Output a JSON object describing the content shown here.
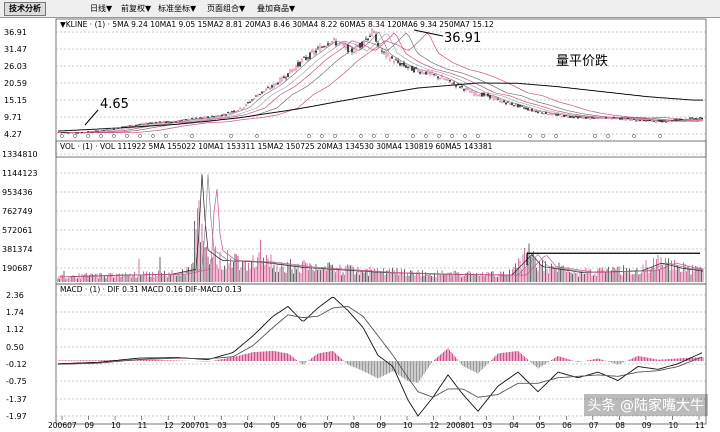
{
  "toolbar": {
    "title": "技术分析",
    "items": [
      "日线▼",
      "前复权▼",
      "标准坐标▼",
      "页面组合▼",
      "叠加商品▼"
    ]
  },
  "colors": {
    "bg": "#ffffff",
    "grid": "#9a9a9a",
    "pink": "#d0508c",
    "gray": "#9a9a9a",
    "dark": "#333333"
  },
  "chart_data": [
    {
      "type": "line",
      "name": "kline",
      "header": "▼KLINE · (1) · 5MA 9.24  10MA1 9.05  15MA2 8.81  20MA3 8.46  30MA4 8.22  60MA5 8.34  120MA6 9.34  250MA7 15.12",
      "y_ticks": [
        "36.91",
        "31.47",
        "26.03",
        "20.59",
        "15.15",
        "9.71",
        "4.27"
      ],
      "ylim": [
        4.27,
        36.91
      ],
      "annotations": {
        "low": "4.65",
        "high": "36.91",
        "note": "量平价跌"
      },
      "price_path": [
        [
          0,
          4.8
        ],
        [
          20,
          4.65
        ],
        [
          45,
          5.4
        ],
        [
          70,
          6.8
        ],
        [
          95,
          7.9
        ],
        [
          115,
          8.2
        ],
        [
          130,
          8.9
        ],
        [
          150,
          9.6
        ],
        [
          165,
          10.4
        ],
        [
          185,
          12.6
        ],
        [
          200,
          16.8
        ],
        [
          215,
          19.5
        ],
        [
          230,
          23.4
        ],
        [
          245,
          27.8
        ],
        [
          260,
          31.2
        ],
        [
          272,
          34.1
        ],
        [
          283,
          33.0
        ],
        [
          295,
          30.8
        ],
        [
          305,
          33.6
        ],
        [
          315,
          36.91
        ],
        [
          325,
          30.2
        ],
        [
          340,
          27.1
        ],
        [
          355,
          25.0
        ],
        [
          370,
          23.8
        ],
        [
          385,
          22.0
        ],
        [
          400,
          19.8
        ],
        [
          415,
          17.4
        ],
        [
          430,
          16.5
        ],
        [
          445,
          14.6
        ],
        [
          460,
          13.3
        ],
        [
          475,
          11.8
        ],
        [
          490,
          10.8
        ],
        [
          505,
          10.1
        ],
        [
          520,
          9.6
        ],
        [
          535,
          9.24
        ],
        [
          545,
          9.6
        ],
        [
          560,
          9.3
        ],
        [
          575,
          8.8
        ],
        [
          590,
          8.5
        ],
        [
          605,
          8.3
        ],
        [
          620,
          8.9
        ],
        [
          635,
          9.24
        ]
      ],
      "ma250_path": [
        [
          0,
          5.2
        ],
        [
          60,
          6.2
        ],
        [
          120,
          7.4
        ],
        [
          180,
          9.4
        ],
        [
          240,
          12.3
        ],
        [
          300,
          15.8
        ],
        [
          360,
          19.0
        ],
        [
          420,
          20.6
        ],
        [
          460,
          20.5
        ],
        [
          500,
          19.4
        ],
        [
          545,
          17.8
        ],
        [
          590,
          16.2
        ],
        [
          635,
          15.12
        ]
      ]
    },
    {
      "type": "bar",
      "name": "volume",
      "header": "VOL · (1) · VOL 111922  5MA 155022  10MA1 153311  15MA2 150725  20MA3 134530  30MA4 130819  60MA5 143381",
      "y_ticks": [
        "1334810",
        "1144123",
        "953436",
        "762749",
        "572061",
        "381374",
        "190687"
      ],
      "ylim": [
        0,
        1334810
      ],
      "ref_level": 300000,
      "profile": [
        [
          0,
          60000
        ],
        [
          60,
          80000
        ],
        [
          110,
          90000
        ],
        [
          135,
          150000
        ],
        [
          140,
          1250000
        ],
        [
          145,
          380000
        ],
        [
          160,
          250000
        ],
        [
          200,
          230000
        ],
        [
          240,
          170000
        ],
        [
          280,
          140000
        ],
        [
          320,
          110000
        ],
        [
          380,
          90000
        ],
        [
          450,
          80000
        ],
        [
          470,
          320000
        ],
        [
          480,
          180000
        ],
        [
          520,
          110000
        ],
        [
          580,
          130000
        ],
        [
          600,
          220000
        ],
        [
          620,
          160000
        ],
        [
          645,
          120000
        ]
      ]
    },
    {
      "type": "line",
      "name": "macd",
      "header": "MACD · (1) · DIF 0.31  MACD 0.16  DIF-MACD 0.13",
      "y_ticks": [
        "2.36",
        "1.74",
        "1.12",
        "0.50",
        "-0.12",
        "-0.75",
        "-1.37",
        "-1.97"
      ],
      "ylim": [
        -1.97,
        2.36
      ],
      "dif_path": [
        [
          0,
          -0.1
        ],
        [
          40,
          -0.05
        ],
        [
          80,
          0.1
        ],
        [
          120,
          0.12
        ],
        [
          150,
          0.05
        ],
        [
          175,
          0.3
        ],
        [
          195,
          0.9
        ],
        [
          215,
          1.6
        ],
        [
          230,
          1.95
        ],
        [
          245,
          1.4
        ],
        [
          260,
          1.9
        ],
        [
          275,
          2.3
        ],
        [
          290,
          1.8
        ],
        [
          305,
          1.2
        ],
        [
          320,
          0.2
        ],
        [
          335,
          -0.2
        ],
        [
          350,
          -1.4
        ],
        [
          360,
          -1.97
        ],
        [
          375,
          -1.3
        ],
        [
          390,
          -0.5
        ],
        [
          405,
          -1.2
        ],
        [
          420,
          -1.8
        ],
        [
          440,
          -0.9
        ],
        [
          460,
          -0.4
        ],
        [
          480,
          -1.1
        ],
        [
          500,
          -0.4
        ],
        [
          520,
          -0.6
        ],
        [
          540,
          -0.4
        ],
        [
          560,
          -0.7
        ],
        [
          580,
          -0.2
        ],
        [
          600,
          -0.3
        ],
        [
          620,
          -0.1
        ],
        [
          645,
          0.31
        ]
      ],
      "macd_path": [
        [
          0,
          -0.12
        ],
        [
          40,
          -0.08
        ],
        [
          80,
          0.05
        ],
        [
          120,
          0.1
        ],
        [
          150,
          0.08
        ],
        [
          175,
          0.15
        ],
        [
          195,
          0.55
        ],
        [
          215,
          1.2
        ],
        [
          230,
          1.65
        ],
        [
          245,
          1.55
        ],
        [
          260,
          1.6
        ],
        [
          275,
          1.9
        ],
        [
          290,
          1.95
        ],
        [
          305,
          1.6
        ],
        [
          320,
          0.9
        ],
        [
          335,
          0.2
        ],
        [
          350,
          -0.6
        ],
        [
          360,
          -1.1
        ],
        [
          375,
          -1.3
        ],
        [
          390,
          -1.0
        ],
        [
          405,
          -1.0
        ],
        [
          420,
          -1.3
        ],
        [
          440,
          -1.2
        ],
        [
          460,
          -0.8
        ],
        [
          480,
          -0.8
        ],
        [
          500,
          -0.6
        ],
        [
          520,
          -0.55
        ],
        [
          540,
          -0.5
        ],
        [
          560,
          -0.55
        ],
        [
          580,
          -0.4
        ],
        [
          600,
          -0.35
        ],
        [
          620,
          -0.2
        ],
        [
          645,
          0.16
        ]
      ]
    }
  ],
  "x_axis_labels": [
    "200607",
    "09",
    "10",
    "11",
    "12",
    "200701",
    "03",
    "04",
    "05",
    "06",
    "07",
    "08",
    "09",
    "10",
    "12",
    "200801",
    "03",
    "04",
    "05",
    "06",
    "07",
    "08",
    "09",
    "10",
    "11"
  ],
  "watermark": "头条 @陆家嘴大牛"
}
